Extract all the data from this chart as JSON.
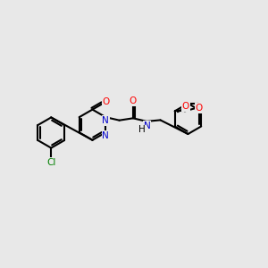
{
  "background_color": "#e8e8e8",
  "bond_color": "#000000",
  "bond_width": 1.5,
  "atom_colors": {
    "N": "#0000cc",
    "O": "#ff0000",
    "Cl": "#008000",
    "H": "#000000"
  },
  "font_size": 7.5,
  "fig_size": [
    3.0,
    3.0
  ],
  "dpi": 100
}
